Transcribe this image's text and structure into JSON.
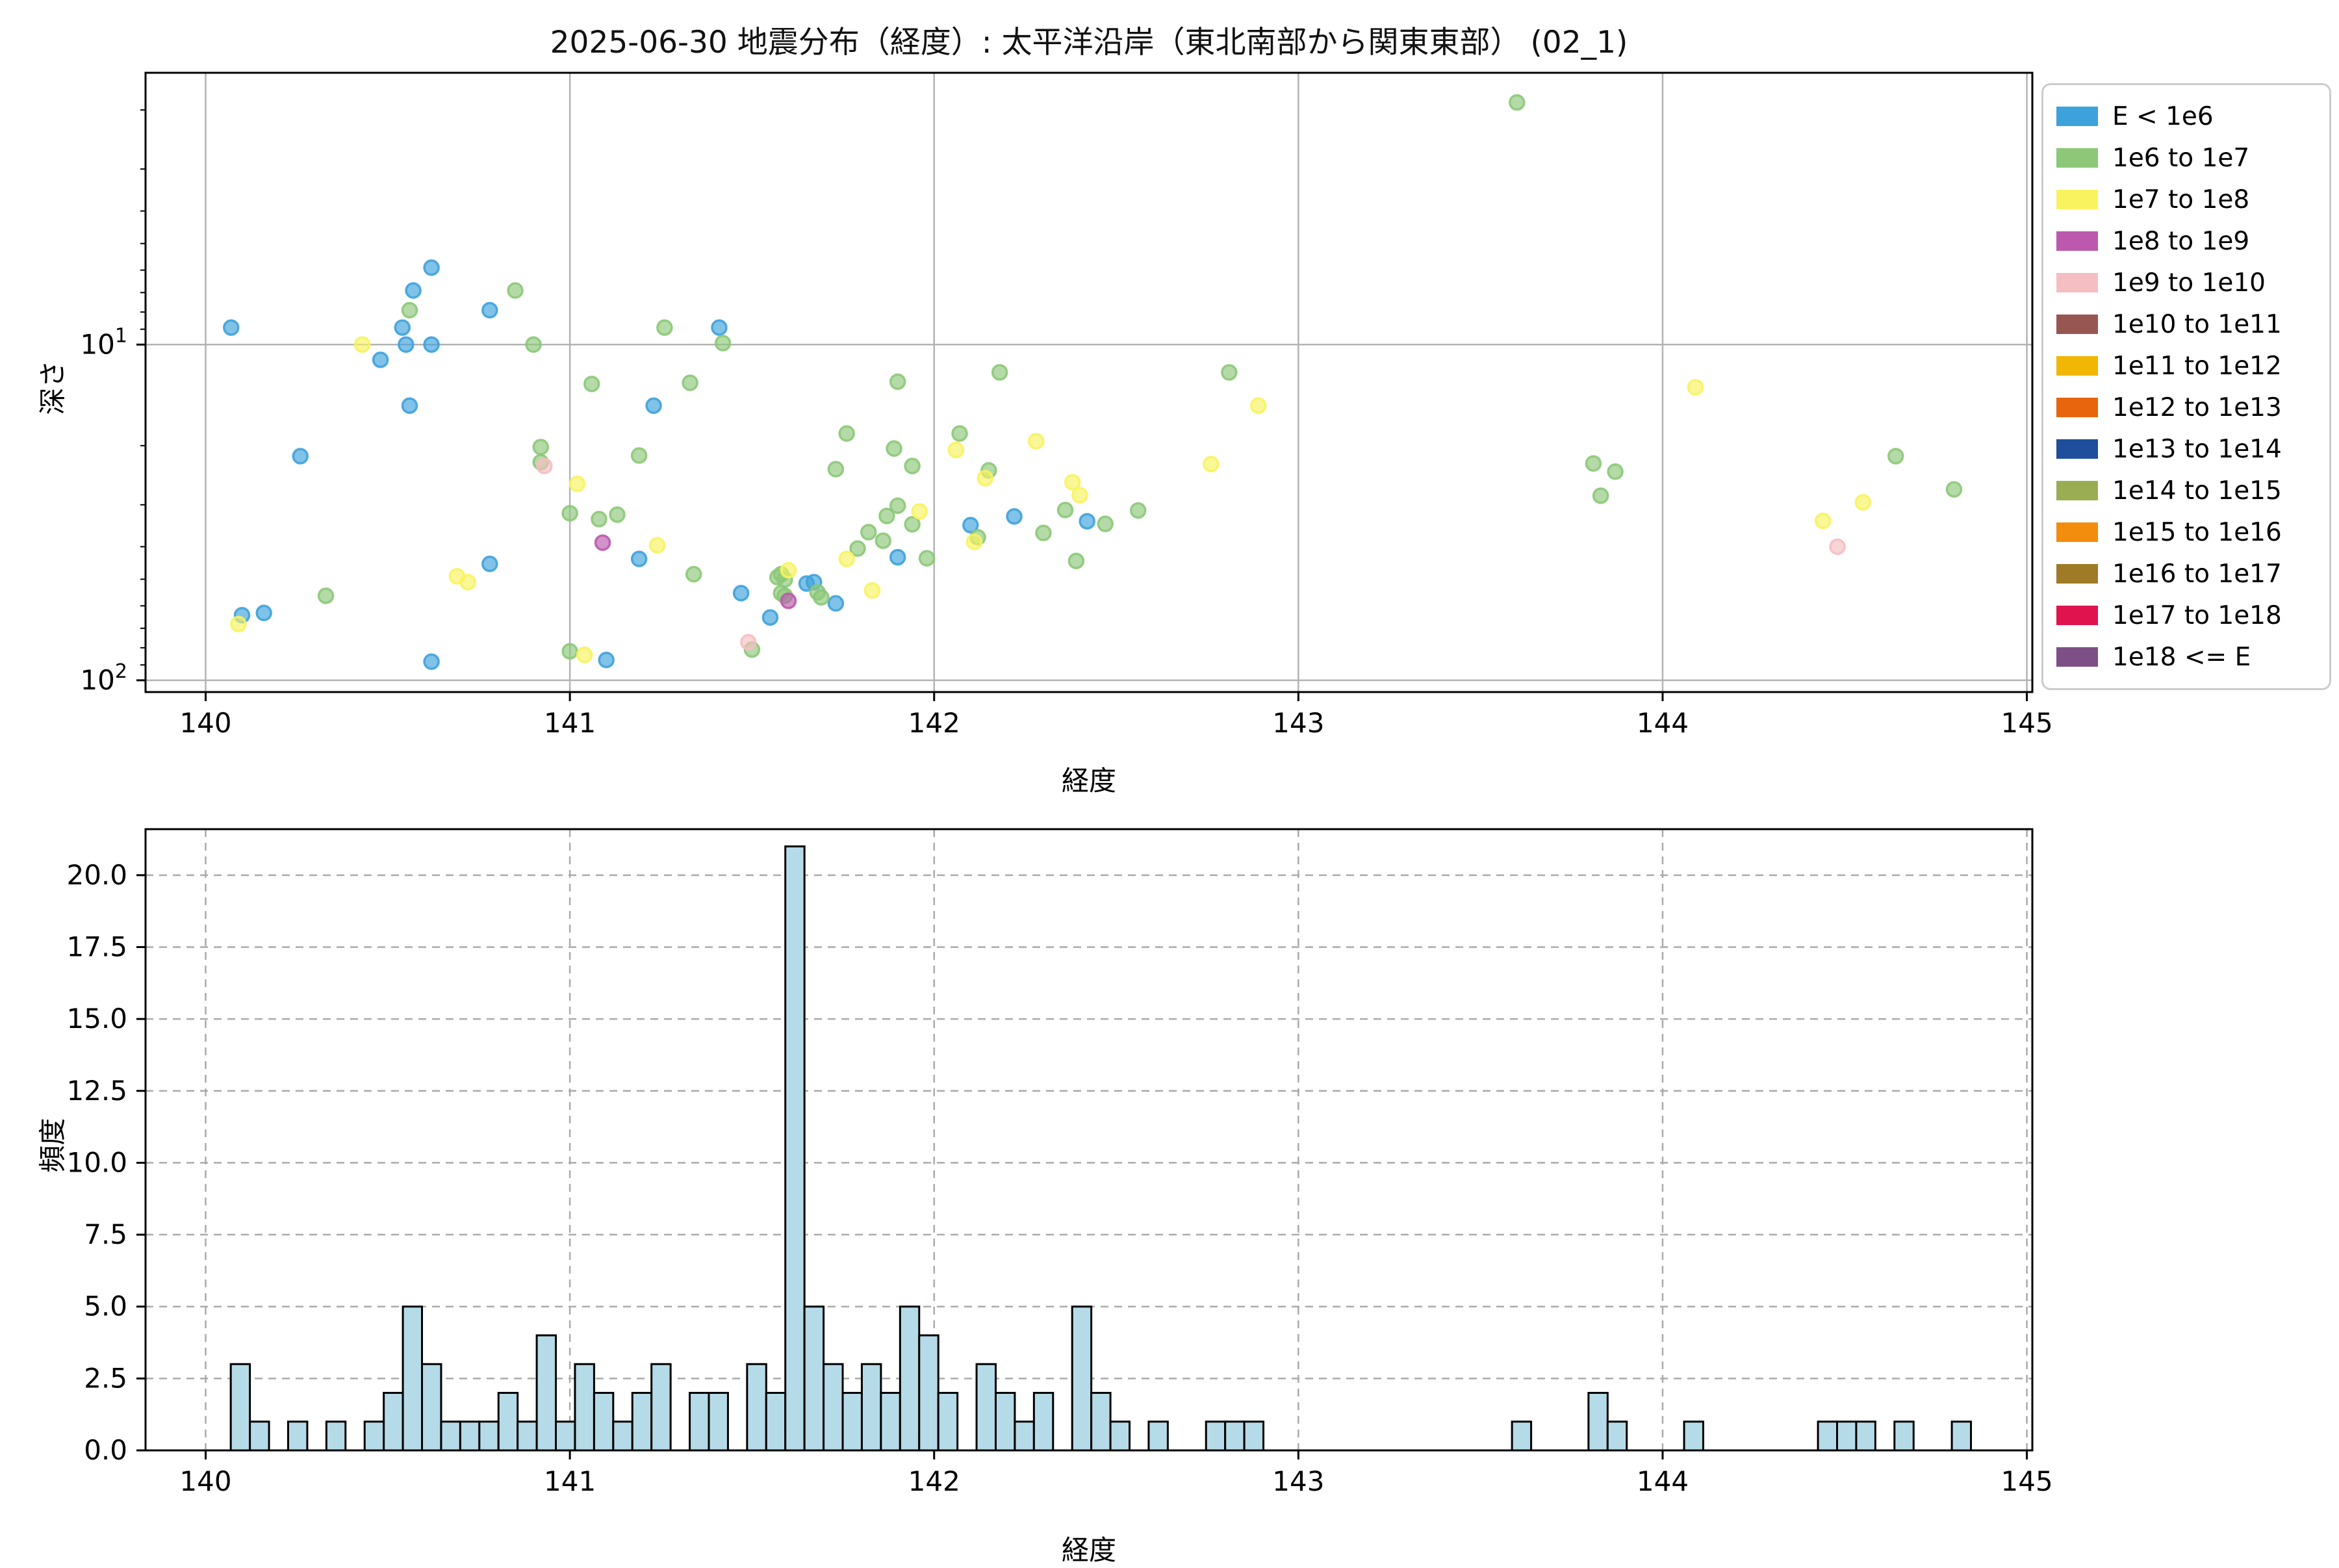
{
  "title": "2025-06-30 地震分布（経度）: 太平洋沿岸（東北南部から関東東部） (02_1)",
  "axes_labels": {
    "x": "経度",
    "y_top": "深さ",
    "y_bottom": "頻度"
  },
  "legend": {
    "items": [
      {
        "label": "E < 1e6",
        "color": "#3DA2DC"
      },
      {
        "label": "1e6 to 1e7",
        "color": "#8CC878"
      },
      {
        "label": "1e7 to 1e8",
        "color": "#F8F35E"
      },
      {
        "label": "1e8 to 1e9",
        "color": "#BC58AE"
      },
      {
        "label": "1e9 to 1e10",
        "color": "#F5BEC2"
      },
      {
        "label": "1e10 to 1e11",
        "color": "#985652"
      },
      {
        "label": "1e11 to 1e12",
        "color": "#F2B705"
      },
      {
        "label": "1e12 to 1e13",
        "color": "#E8650D"
      },
      {
        "label": "1e13 to 1e14",
        "color": "#1E4E9C"
      },
      {
        "label": "1e14 to 1e15",
        "color": "#9AAD53"
      },
      {
        "label": "1e15 to 1e16",
        "color": "#F28D0E"
      },
      {
        "label": "1e16 to 1e17",
        "color": "#9F7A27"
      },
      {
        "label": "1e17 to 1e18",
        "color": "#E0134F"
      },
      {
        "label": "1e18 <= E",
        "color": "#7D4F87"
      }
    ]
  },
  "chart_data": [
    {
      "type": "scatter",
      "title": "2025-06-30 地震分布（経度）: 太平洋沿岸（東北南部から関東東部） (02_1)",
      "xlabel": "経度",
      "ylabel": "深さ",
      "x_axis": "linear",
      "y_axis": "log-inverted",
      "xlim": [
        139.835,
        145.015
      ],
      "ylim": [
        1.55,
        108.4
      ],
      "grid": true,
      "xticks": [
        140,
        141,
        142,
        143,
        144,
        145
      ],
      "yticks_major": [
        {
          "value": 10,
          "mantissa": "10",
          "exp": "1"
        },
        {
          "value": 100,
          "mantissa": "10",
          "exp": "2"
        }
      ],
      "yticks_minor": [
        2,
        3,
        4,
        5,
        6,
        7,
        8,
        9,
        20,
        30,
        40,
        50,
        60,
        70,
        80,
        90
      ],
      "point_alpha": 0.65,
      "category_colors": [
        "#3DA2DC",
        "#8CC878",
        "#F8F35E",
        "#BC58AE",
        "#F5BEC2"
      ],
      "category_labels": [
        "E < 1e6",
        "1e6 to 1e7",
        "1e7 to 1e8",
        "1e8 to 1e9",
        "1e9 to 1e10"
      ],
      "points": [
        [
          140.07,
          8.9,
          0
        ],
        [
          140.1,
          64,
          0
        ],
        [
          140.16,
          63,
          0
        ],
        [
          140.26,
          21.5,
          0
        ],
        [
          140.48,
          11.1,
          0
        ],
        [
          140.54,
          8.9,
          0
        ],
        [
          140.55,
          10.0,
          0
        ],
        [
          140.56,
          15.2,
          0
        ],
        [
          140.57,
          6.9,
          0
        ],
        [
          140.62,
          5.9,
          0
        ],
        [
          140.62,
          10.0,
          0
        ],
        [
          140.62,
          88,
          0
        ],
        [
          140.78,
          7.9,
          0
        ],
        [
          140.78,
          45,
          0
        ],
        [
          141.1,
          87,
          0
        ],
        [
          141.19,
          43.5,
          0
        ],
        [
          141.23,
          15.2,
          0
        ],
        [
          141.41,
          8.9,
          0
        ],
        [
          141.47,
          55,
          0
        ],
        [
          141.55,
          65,
          0
        ],
        [
          141.65,
          51.5,
          0
        ],
        [
          141.67,
          51,
          0
        ],
        [
          141.73,
          59,
          0
        ],
        [
          141.9,
          43,
          0
        ],
        [
          142.1,
          34.5,
          0
        ],
        [
          142.22,
          32.5,
          0
        ],
        [
          142.42,
          33.6,
          0
        ],
        [
          140.33,
          56,
          1
        ],
        [
          140.56,
          7.9,
          1
        ],
        [
          140.85,
          6.9,
          1
        ],
        [
          140.9,
          10.0,
          1
        ],
        [
          140.92,
          20.2,
          1
        ],
        [
          140.92,
          22.4,
          1
        ],
        [
          141.0,
          31.8,
          1
        ],
        [
          141.0,
          82,
          1
        ],
        [
          141.06,
          13.1,
          1
        ],
        [
          141.08,
          33.1,
          1
        ],
        [
          141.13,
          32.1,
          1
        ],
        [
          141.19,
          21.4,
          1
        ],
        [
          141.26,
          8.9,
          1
        ],
        [
          141.33,
          13.0,
          1
        ],
        [
          141.34,
          48.3,
          1
        ],
        [
          141.42,
          9.9,
          1
        ],
        [
          141.5,
          81,
          1
        ],
        [
          141.57,
          49.3,
          1
        ],
        [
          141.58,
          48.3,
          1
        ],
        [
          141.59,
          50.1,
          1
        ],
        [
          141.58,
          55,
          1
        ],
        [
          141.59,
          56,
          1
        ],
        [
          141.68,
          54.7,
          1
        ],
        [
          141.69,
          56.6,
          1
        ],
        [
          141.73,
          23.5,
          1
        ],
        [
          141.76,
          18.4,
          1
        ],
        [
          141.79,
          40.5,
          1
        ],
        [
          141.82,
          36.2,
          1
        ],
        [
          141.86,
          38.4,
          1
        ],
        [
          141.87,
          32.4,
          1
        ],
        [
          141.89,
          20.4,
          1
        ],
        [
          141.9,
          12.9,
          1
        ],
        [
          141.9,
          30.2,
          1
        ],
        [
          141.94,
          23.0,
          1
        ],
        [
          141.94,
          34.3,
          1
        ],
        [
          141.98,
          43.3,
          1
        ],
        [
          142.07,
          18.4,
          1
        ],
        [
          142.12,
          37.5,
          1
        ],
        [
          142.15,
          23.7,
          1
        ],
        [
          142.18,
          12.1,
          1
        ],
        [
          142.3,
          36.4,
          1
        ],
        [
          142.36,
          31.1,
          1
        ],
        [
          142.39,
          44.1,
          1
        ],
        [
          142.47,
          34.2,
          1
        ],
        [
          142.56,
          31.2,
          1
        ],
        [
          142.81,
          12.1,
          1
        ],
        [
          143.6,
          1.9,
          1
        ],
        [
          143.81,
          22.6,
          1
        ],
        [
          143.83,
          28.2,
          1
        ],
        [
          143.87,
          23.9,
          1
        ],
        [
          144.64,
          21.5,
          1
        ],
        [
          144.8,
          27.0,
          1
        ],
        [
          140.09,
          68,
          2
        ],
        [
          140.43,
          10.0,
          2
        ],
        [
          140.69,
          49,
          2
        ],
        [
          140.72,
          51,
          2
        ],
        [
          141.02,
          26,
          2
        ],
        [
          141.04,
          84,
          2
        ],
        [
          141.24,
          39.6,
          2
        ],
        [
          141.6,
          47,
          2
        ],
        [
          141.76,
          43.5,
          2
        ],
        [
          141.83,
          54,
          2
        ],
        [
          141.96,
          31.4,
          2
        ],
        [
          142.06,
          20.6,
          2
        ],
        [
          142.11,
          38.7,
          2
        ],
        [
          142.14,
          25.0,
          2
        ],
        [
          142.28,
          19.4,
          2
        ],
        [
          142.38,
          25.7,
          2
        ],
        [
          142.4,
          28.1,
          2
        ],
        [
          142.76,
          22.7,
          2
        ],
        [
          142.89,
          15.2,
          2
        ],
        [
          144.09,
          13.4,
          2
        ],
        [
          144.44,
          33.5,
          2
        ],
        [
          144.55,
          29.5,
          2
        ],
        [
          141.09,
          38.9,
          3
        ],
        [
          141.6,
          58,
          3
        ],
        [
          140.93,
          23,
          4
        ],
        [
          141.49,
          77,
          4
        ],
        [
          144.48,
          40,
          4
        ]
      ]
    },
    {
      "type": "bar",
      "xlabel": "経度",
      "ylabel": "頻度",
      "xlim": [
        139.835,
        145.015
      ],
      "ylim": [
        0,
        21.6
      ],
      "grid": "dashed",
      "xticks": [
        140,
        141,
        142,
        143,
        144,
        145
      ],
      "yticks": [
        0.0,
        2.5,
        5.0,
        7.5,
        10.0,
        12.5,
        15.0,
        17.5,
        20.0
      ],
      "bar_color": "#B6DBE8",
      "bar_edge_color": "#000000",
      "bin_start": 140.069,
      "bin_width": 0.0525,
      "counts": [
        3,
        1,
        0,
        1,
        0,
        1,
        0,
        1,
        2,
        5,
        3,
        1,
        1,
        1,
        2,
        1,
        4,
        1,
        3,
        2,
        1,
        2,
        3,
        0,
        2,
        2,
        0,
        3,
        2,
        21,
        5,
        3,
        2,
        3,
        2,
        5,
        4,
        2,
        0,
        3,
        2,
        1,
        2,
        0,
        5,
        2,
        1,
        0,
        1,
        0,
        0,
        1,
        1,
        1,
        0,
        0,
        0,
        0,
        0,
        0,
        0,
        0,
        0,
        0,
        0,
        0,
        0,
        1,
        0,
        0,
        0,
        2,
        1,
        0,
        0,
        0,
        1,
        0,
        0,
        0,
        0,
        0,
        0,
        1,
        1,
        1,
        0,
        1,
        0,
        0,
        1
      ]
    }
  ]
}
